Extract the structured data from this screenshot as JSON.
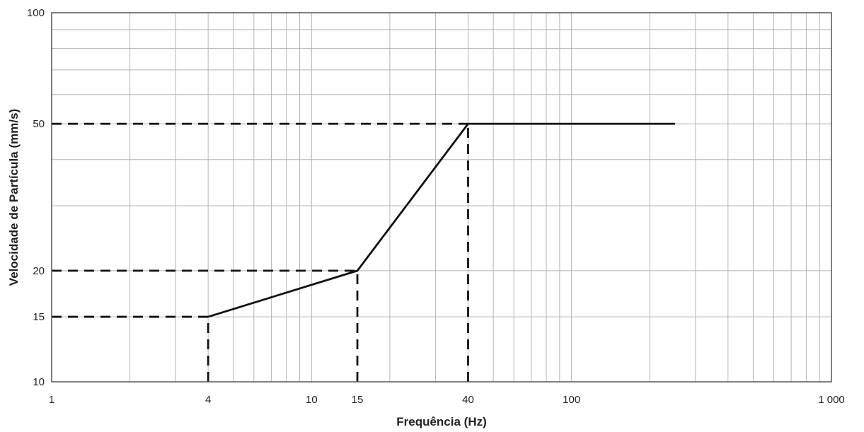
{
  "chart_data": {
    "type": "line",
    "title": "",
    "xlabel": "Frequência (Hz)",
    "ylabel": "Velocidade de Partícula (mm/s)",
    "x_scale": "log",
    "y_scale": "log",
    "xlim": [
      1,
      1000
    ],
    "ylim": [
      10,
      100
    ],
    "grid": true,
    "legend": "none",
    "x_ticks": [
      {
        "value": 1,
        "label": "1"
      },
      {
        "value": 4,
        "label": "4"
      },
      {
        "value": 10,
        "label": "10"
      },
      {
        "value": 15,
        "label": "15"
      },
      {
        "value": 40,
        "label": "40"
      },
      {
        "value": 100,
        "label": "100"
      },
      {
        "value": 1000,
        "label": "1 000"
      }
    ],
    "y_ticks": [
      {
        "value": 10,
        "label": "10"
      },
      {
        "value": 15,
        "label": "15"
      },
      {
        "value": 20,
        "label": "20"
      },
      {
        "value": 50,
        "label": "50"
      },
      {
        "value": 100,
        "label": "100"
      }
    ],
    "series": [
      {
        "x": [
          4,
          15,
          40,
          250
        ],
        "y": [
          15,
          20,
          50,
          50
        ],
        "color": "#111111",
        "style": "solid"
      }
    ],
    "reference_lines": [
      {
        "x": [
          1,
          4
        ],
        "y": [
          15,
          15
        ],
        "style": "dashed"
      },
      {
        "x": [
          4,
          4
        ],
        "y": [
          10,
          15
        ],
        "style": "dashed"
      },
      {
        "x": [
          1,
          15
        ],
        "y": [
          20,
          20
        ],
        "style": "dashed"
      },
      {
        "x": [
          15,
          15
        ],
        "y": [
          10,
          20
        ],
        "style": "dashed"
      },
      {
        "x": [
          1,
          40
        ],
        "y": [
          50,
          50
        ],
        "style": "dashed"
      },
      {
        "x": [
          40,
          40
        ],
        "y": [
          10,
          50
        ],
        "style": "dashed"
      }
    ],
    "colors": {
      "grid": "#b5b5b5",
      "frame": "#555555",
      "line": "#111111"
    }
  }
}
